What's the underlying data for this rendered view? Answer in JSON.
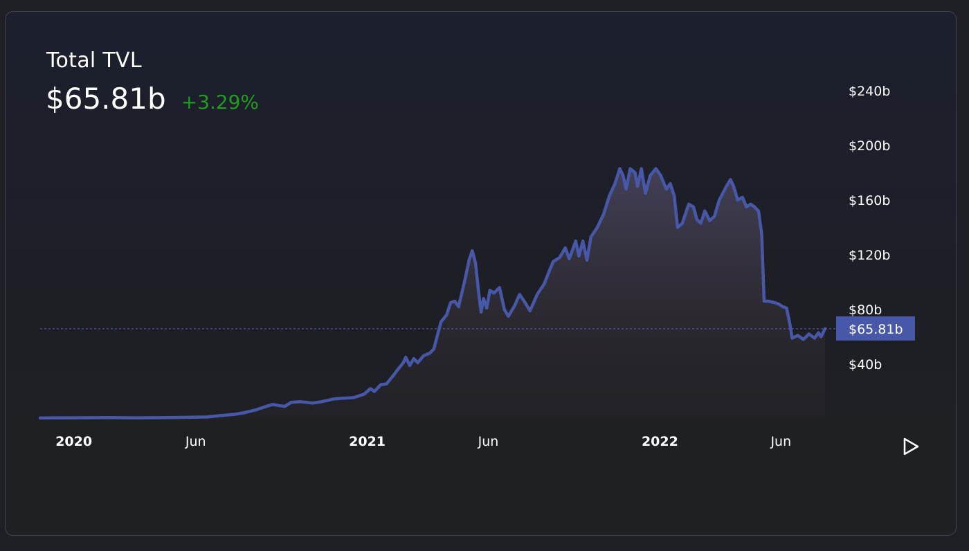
{
  "header": {
    "title": "Total TVL",
    "value": "$65.81b",
    "change": "+3.29%",
    "change_color": "#1f9d1f"
  },
  "chart_data": {
    "type": "area",
    "title": "Total TVL",
    "line_color": "#4858a8",
    "current_value": 65.81,
    "current_label": "$65.81b",
    "y_ticks": [
      {
        "value": 40,
        "label": "$40b"
      },
      {
        "value": 80,
        "label": "$80b"
      },
      {
        "value": 120,
        "label": "$120b"
      },
      {
        "value": 160,
        "label": "$160b"
      },
      {
        "value": 200,
        "label": "$200b"
      },
      {
        "value": 240,
        "label": "$240b"
      }
    ],
    "x_ticks": [
      {
        "date": "2020-01-01",
        "label": "2020",
        "bold": true
      },
      {
        "date": "2020-06-01",
        "label": "Jun",
        "bold": false
      },
      {
        "date": "2021-01-01",
        "label": "2021",
        "bold": true
      },
      {
        "date": "2021-06-01",
        "label": "Jun",
        "bold": false
      },
      {
        "date": "2022-01-01",
        "label": "2022",
        "bold": true
      },
      {
        "date": "2022-06-01",
        "label": "Jun",
        "bold": false
      }
    ],
    "x_range": [
      "2019-11-20",
      "2022-07-26"
    ],
    "y_range": [
      0,
      240
    ],
    "series": [
      {
        "name": "",
        "points": [
          [
            "2019-11-20",
            0.6
          ],
          [
            "2019-12-15",
            0.7
          ],
          [
            "2020-01-15",
            0.75
          ],
          [
            "2020-02-15",
            0.9
          ],
          [
            "2020-03-15",
            0.7
          ],
          [
            "2020-04-15",
            0.8
          ],
          [
            "2020-05-15",
            1.0
          ],
          [
            "2020-06-15",
            1.3
          ],
          [
            "2020-07-01",
            2.3
          ],
          [
            "2020-07-20",
            3.3
          ],
          [
            "2020-08-01",
            4.5
          ],
          [
            "2020-08-15",
            6.5
          ],
          [
            "2020-08-25",
            8.5
          ],
          [
            "2020-09-05",
            10.5
          ],
          [
            "2020-09-20",
            9.0
          ],
          [
            "2020-09-28",
            12.0
          ],
          [
            "2020-10-10",
            12.5
          ],
          [
            "2020-10-25",
            11.5
          ],
          [
            "2020-11-05",
            12.5
          ],
          [
            "2020-11-20",
            14.5
          ],
          [
            "2020-12-01",
            15.0
          ],
          [
            "2020-12-15",
            15.5
          ],
          [
            "2020-12-28",
            18.0
          ],
          [
            "2021-01-05",
            22.0
          ],
          [
            "2021-01-10",
            20.0
          ],
          [
            "2021-01-18",
            25.0
          ],
          [
            "2021-01-25",
            25.5
          ],
          [
            "2021-02-03",
            32.0
          ],
          [
            "2021-02-08",
            36.0
          ],
          [
            "2021-02-15",
            41.0
          ],
          [
            "2021-02-18",
            45.0
          ],
          [
            "2021-02-23",
            39.0
          ],
          [
            "2021-02-28",
            44.0
          ],
          [
            "2021-03-05",
            41.0
          ],
          [
            "2021-03-12",
            46.0
          ],
          [
            "2021-03-20",
            48.0
          ],
          [
            "2021-03-25",
            51.0
          ],
          [
            "2021-04-03",
            71.0
          ],
          [
            "2021-04-10",
            76.0
          ],
          [
            "2021-04-15",
            85.0
          ],
          [
            "2021-04-20",
            86.0
          ],
          [
            "2021-04-25",
            82.0
          ],
          [
            "2021-05-03",
            102.0
          ],
          [
            "2021-05-08",
            116.0
          ],
          [
            "2021-05-12",
            123.0
          ],
          [
            "2021-05-16",
            114.0
          ],
          [
            "2021-05-20",
            92.0
          ],
          [
            "2021-05-23",
            78.0
          ],
          [
            "2021-05-26",
            88.0
          ],
          [
            "2021-05-30",
            81.0
          ],
          [
            "2021-06-03",
            94.0
          ],
          [
            "2021-06-08",
            92.0
          ],
          [
            "2021-06-15",
            96.0
          ],
          [
            "2021-06-21",
            80.0
          ],
          [
            "2021-06-26",
            75.0
          ],
          [
            "2021-07-04",
            83.0
          ],
          [
            "2021-07-10",
            91.0
          ],
          [
            "2021-07-18",
            84.0
          ],
          [
            "2021-07-23",
            79.0
          ],
          [
            "2021-08-01",
            91.0
          ],
          [
            "2021-08-10",
            99.0
          ],
          [
            "2021-08-16",
            108.0
          ],
          [
            "2021-08-21",
            115.0
          ],
          [
            "2021-08-29",
            118.0
          ],
          [
            "2021-09-05",
            125.0
          ],
          [
            "2021-09-10",
            117.0
          ],
          [
            "2021-09-18",
            130.0
          ],
          [
            "2021-09-22",
            119.0
          ],
          [
            "2021-09-27",
            130.0
          ],
          [
            "2021-10-02",
            116.0
          ],
          [
            "2021-10-07",
            133.0
          ],
          [
            "2021-10-15",
            140.0
          ],
          [
            "2021-10-23",
            150.0
          ],
          [
            "2021-10-30",
            163.0
          ],
          [
            "2021-11-06",
            172.0
          ],
          [
            "2021-11-12",
            183.0
          ],
          [
            "2021-11-16",
            178.0
          ],
          [
            "2021-11-20",
            168.0
          ],
          [
            "2021-11-25",
            183.0
          ],
          [
            "2021-12-01",
            180.0
          ],
          [
            "2021-12-04",
            170.0
          ],
          [
            "2021-12-09",
            183.0
          ],
          [
            "2021-12-14",
            165.0
          ],
          [
            "2021-12-20",
            178.0
          ],
          [
            "2021-12-27",
            183.0
          ],
          [
            "2022-01-02",
            178.0
          ],
          [
            "2022-01-09",
            168.0
          ],
          [
            "2022-01-14",
            172.0
          ],
          [
            "2022-01-19",
            163.0
          ],
          [
            "2022-01-23",
            140.0
          ],
          [
            "2022-01-29",
            143.0
          ],
          [
            "2022-02-06",
            157.0
          ],
          [
            "2022-02-12",
            155.0
          ],
          [
            "2022-02-16",
            146.0
          ],
          [
            "2022-02-21",
            143.0
          ],
          [
            "2022-02-26",
            152.0
          ],
          [
            "2022-03-04",
            145.0
          ],
          [
            "2022-03-10",
            148.0
          ],
          [
            "2022-03-16",
            160.0
          ],
          [
            "2022-03-25",
            170.0
          ],
          [
            "2022-03-30",
            175.0
          ],
          [
            "2022-04-03",
            170.0
          ],
          [
            "2022-04-08",
            160.0
          ],
          [
            "2022-04-14",
            162.0
          ],
          [
            "2022-04-19",
            155.0
          ],
          [
            "2022-04-24",
            157.0
          ],
          [
            "2022-04-29",
            155.0
          ],
          [
            "2022-05-04",
            152.0
          ],
          [
            "2022-05-08",
            135.0
          ],
          [
            "2022-05-11",
            86.0
          ],
          [
            "2022-05-16",
            86.0
          ],
          [
            "2022-05-24",
            85.0
          ],
          [
            "2022-05-29",
            84.0
          ],
          [
            "2022-06-03",
            82.0
          ],
          [
            "2022-06-08",
            81.0
          ],
          [
            "2022-06-12",
            70.0
          ],
          [
            "2022-06-15",
            59.0
          ],
          [
            "2022-06-22",
            61.0
          ],
          [
            "2022-06-29",
            58.0
          ],
          [
            "2022-07-06",
            62.0
          ],
          [
            "2022-07-13",
            59.0
          ],
          [
            "2022-07-18",
            63.0
          ],
          [
            "2022-07-21",
            60.0
          ],
          [
            "2022-07-26",
            65.8
          ]
        ]
      }
    ]
  }
}
